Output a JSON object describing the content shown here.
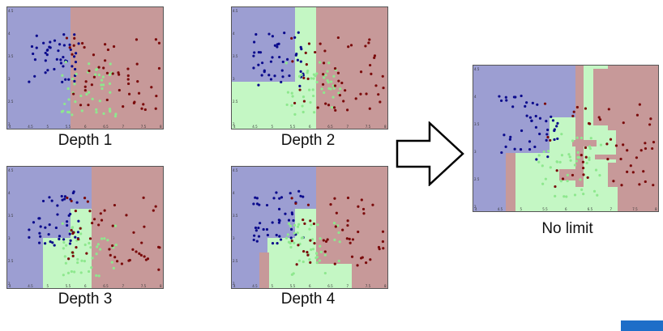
{
  "figure": {
    "panels": [
      {
        "id": "depth1",
        "caption": "Depth 1"
      },
      {
        "id": "depth2",
        "caption": "Depth 2"
      },
      {
        "id": "depth3",
        "caption": "Depth 3"
      },
      {
        "id": "depth4",
        "caption": "Depth 4"
      },
      {
        "id": "nolimit",
        "caption": "No limit"
      }
    ],
    "arrow_icon": "hollow-right-arrow",
    "region_colors": {
      "blue": "#9c9ed2",
      "red": "#c79999",
      "green": "#c4f7c4"
    },
    "point_colors": {
      "blue": "#0a0a8c",
      "red": "#7a0a0a",
      "green": "#8ee88e"
    },
    "accent_color": "#1e6ec8",
    "x_ticks": [
      "4",
      "4.5",
      "5",
      "5.5",
      "6",
      "6.5",
      "7",
      "7.5",
      "8"
    ],
    "y_ticks": [
      "2",
      "2.5",
      "3",
      "3.5",
      "4",
      "4.5"
    ]
  }
}
